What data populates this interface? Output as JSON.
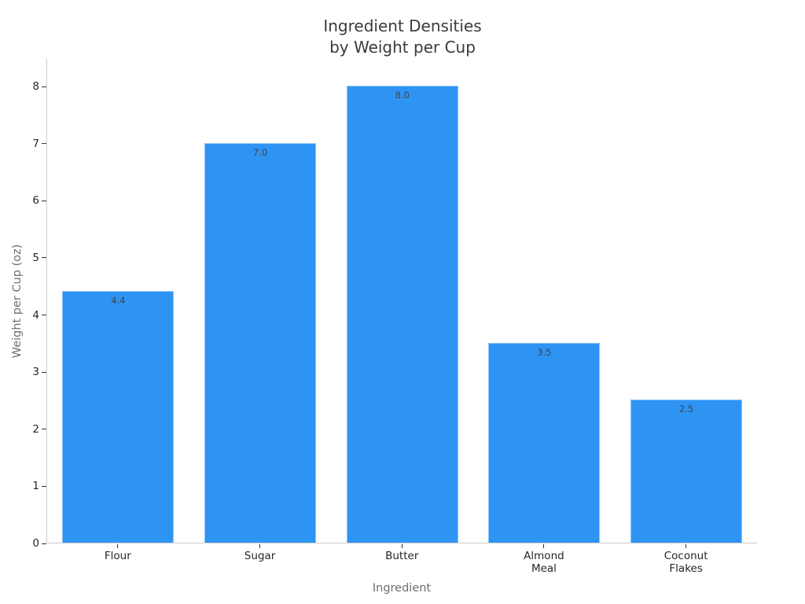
{
  "chart_data": {
    "type": "bar",
    "title": "Ingredient Densities by Weight per Cup",
    "title_lines": [
      "Ingredient Densities",
      "by Weight per Cup"
    ],
    "categories": [
      "Flour",
      "Sugar",
      "Butter",
      "Almond\nMeal",
      "Coconut\nFlakes"
    ],
    "values": [
      4.4,
      7.0,
      8.0,
      3.5,
      2.5
    ],
    "bar_value_labels": [
      "4.4",
      "7.0",
      "8.0",
      "3.5",
      "2.5"
    ],
    "xlabel": "Ingredient",
    "ylabel": "Weight per Cup (oz)",
    "yticks": [
      0,
      1,
      2,
      3,
      4,
      5,
      6,
      7,
      8
    ],
    "ylim": [
      0,
      8.48
    ],
    "grid": false,
    "legend_position": "none",
    "colors": {
      "bar_fill": "#2e94f4",
      "bar_value_label": "#434343",
      "tick_label": "#262626",
      "axis_label": "#6e6e6e",
      "title": "#3a3a3a",
      "spine": "#cccccc",
      "tick_mark": "#333333"
    }
  }
}
